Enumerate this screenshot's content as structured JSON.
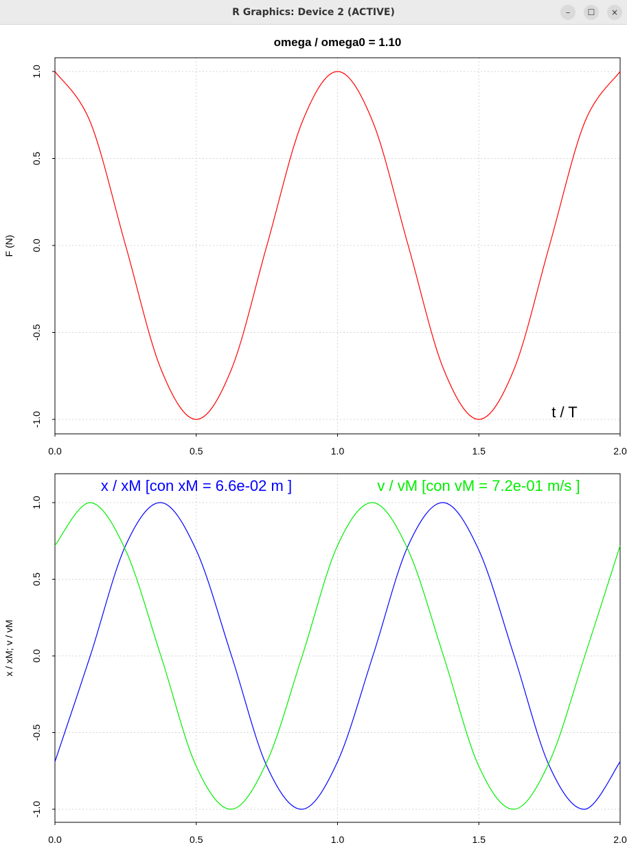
{
  "window": {
    "title": "R Graphics: Device 2 (ACTIVE)",
    "controls": {
      "minimize": "–",
      "maximize": "☐",
      "close": "×"
    }
  },
  "chart_data": [
    {
      "type": "line",
      "title": "omega / omega0  =  1.10",
      "xlabel": "",
      "ylabel": "F (N)",
      "annotation": "t / T",
      "xlim": [
        0,
        2
      ],
      "ylim": [
        -1,
        1
      ],
      "xticks": [
        "0.0",
        "0.5",
        "1.0",
        "1.5",
        "2.0"
      ],
      "yticks": [
        "-1.0",
        "-0.5",
        "0.0",
        "0.5",
        "1.0"
      ],
      "grid": true,
      "series": [
        {
          "color": "#ff0000",
          "x": [
            0,
            0.125,
            0.25,
            0.375,
            0.5,
            0.625,
            0.75,
            0.875,
            1.0,
            1.125,
            1.25,
            1.375,
            1.5,
            1.625,
            1.75,
            1.875,
            2.0
          ],
          "y": [
            1.0,
            0.71,
            0.0,
            -0.71,
            -1.0,
            -0.71,
            0.0,
            0.71,
            1.0,
            0.71,
            0.0,
            -0.71,
            -1.0,
            -0.71,
            0.0,
            0.71,
            1.0
          ]
        }
      ]
    },
    {
      "type": "line",
      "title": "",
      "xlabel": "",
      "ylabel": "x / xM;  v / vM",
      "xlim": [
        0,
        2
      ],
      "ylim": [
        -1,
        1
      ],
      "xticks": [
        "0.0",
        "0.5",
        "1.0",
        "1.5",
        "2.0"
      ],
      "yticks": [
        "-1.0",
        "-0.5",
        "0.0",
        "0.5",
        "1.0"
      ],
      "grid": true,
      "legend": [
        {
          "text": "x / xM  [con  xM = 6.6e-02 m ]",
          "color": "#0000ff"
        },
        {
          "text": "v / vM  [con  vM = 7.2e-01 m/s ]",
          "color": "#00ee00"
        }
      ],
      "series": [
        {
          "color": "#0000ff",
          "x": [
            0,
            0.125,
            0.25,
            0.375,
            0.5,
            0.625,
            0.75,
            0.875,
            1.0,
            1.125,
            1.25,
            1.375,
            1.5,
            1.625,
            1.75,
            1.875,
            2.0
          ],
          "y": [
            -0.69,
            0.0,
            0.72,
            1.0,
            0.69,
            0.0,
            -0.72,
            -1.0,
            -0.69,
            0.0,
            0.72,
            1.0,
            0.69,
            0.0,
            -0.72,
            -1.0,
            -0.69
          ]
        },
        {
          "color": "#00ee00",
          "x": [
            0,
            0.125,
            0.25,
            0.375,
            0.5,
            0.625,
            0.75,
            0.875,
            1.0,
            1.125,
            1.25,
            1.375,
            1.5,
            1.625,
            1.75,
            1.875,
            2.0
          ],
          "y": [
            0.72,
            1.0,
            0.69,
            0.0,
            -0.72,
            -1.0,
            -0.69,
            0.0,
            0.72,
            1.0,
            0.69,
            0.0,
            -0.72,
            -1.0,
            -0.69,
            0.0,
            0.72
          ]
        }
      ]
    }
  ]
}
